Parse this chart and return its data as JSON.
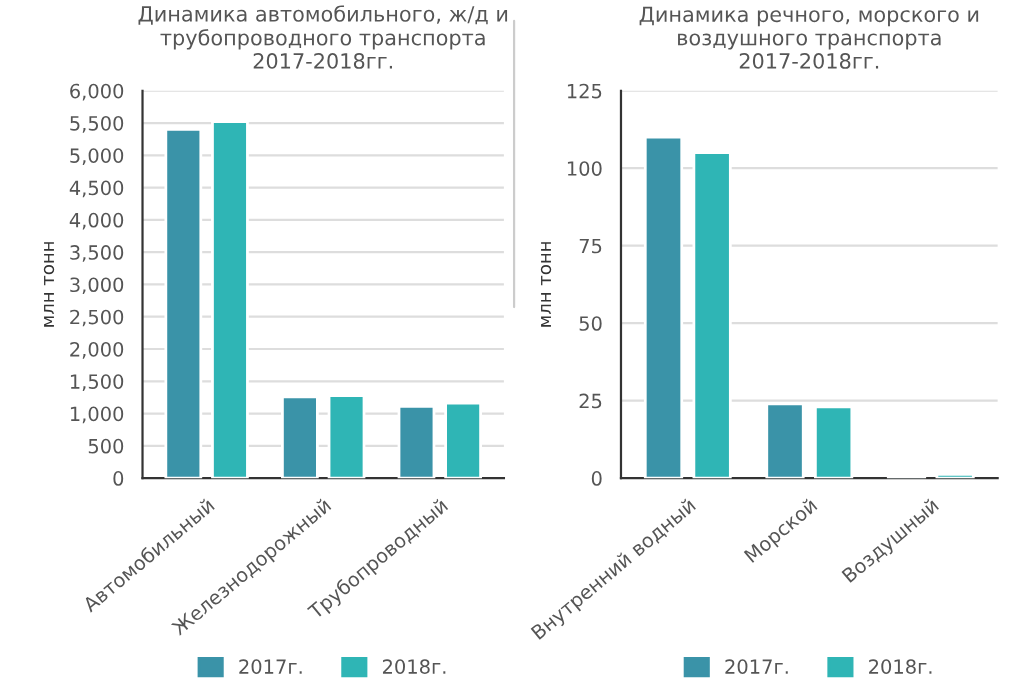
{
  "chart_data": [
    {
      "type": "bar",
      "title": "Динамика автомобильного, ж/д и\nтрубопроводного транспорта\n2017-2018гг.",
      "ylabel": "млн тонн",
      "categories": [
        "Автомобильный",
        "Железнодорожный",
        "Трубопроводный"
      ],
      "series": [
        {
          "name": "2017г.",
          "color": "#3a93a8",
          "values": [
            5400,
            1260,
            1110
          ]
        },
        {
          "name": "2018г.",
          "color": "#2fb5b5",
          "values": [
            5520,
            1280,
            1160
          ]
        }
      ],
      "ylim": [
        0,
        6000
      ],
      "yticks": [
        {
          "value": 0,
          "label": "0"
        },
        {
          "value": 500,
          "label": "500"
        },
        {
          "value": 1000,
          "label": "1,000"
        },
        {
          "value": 1500,
          "label": "1,500"
        },
        {
          "value": 2000,
          "label": "2,000"
        },
        {
          "value": 2500,
          "label": "2,500"
        },
        {
          "value": 3000,
          "label": "3,000"
        },
        {
          "value": 3500,
          "label": "3,500"
        },
        {
          "value": 4000,
          "label": "4,000"
        },
        {
          "value": 4500,
          "label": "4,500"
        },
        {
          "value": 5000,
          "label": "5,000"
        },
        {
          "value": 5500,
          "label": "5,500"
        },
        {
          "value": 6000,
          "label": "6,000"
        }
      ],
      "grid": "y",
      "legend": "bottom"
    },
    {
      "type": "bar",
      "title": "Динамика речного, морского и\nвоздушного транспорта\n2017-2018гг.",
      "ylabel": "млн тонн",
      "categories": [
        "Внутренний водный",
        "Морской",
        "Воздушный"
      ],
      "series": [
        {
          "name": "2017г.",
          "color": "#3a93a8",
          "values": [
            110,
            24,
            0.8
          ]
        },
        {
          "name": "2018г.",
          "color": "#2fb5b5",
          "values": [
            105,
            23,
            1.2
          ]
        }
      ],
      "ylim": [
        0,
        125
      ],
      "yticks": [
        0,
        25,
        50,
        75,
        100,
        125
      ],
      "grid": "y",
      "legend": "bottom"
    }
  ]
}
